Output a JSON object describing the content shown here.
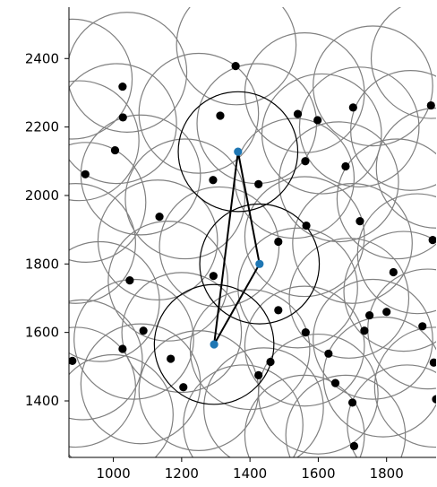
{
  "chart_data": {
    "type": "scatter",
    "title": "",
    "xlabel": "",
    "ylabel": "",
    "xlim": [
      870,
      1945
    ],
    "ylim": [
      1235,
      2550
    ],
    "xticks": [
      1000,
      1200,
      1400,
      1600,
      1800
    ],
    "xtick_labels": [
      "1000",
      "1200",
      "1400",
      "1600",
      "1800"
    ],
    "yticks": [
      1400,
      1600,
      1800,
      2000,
      2200,
      2400
    ],
    "ytick_labels": [
      "1400",
      "1600",
      "1800",
      "2000",
      "2200",
      "2400"
    ],
    "grid": false,
    "colors": {
      "points": "#000000",
      "highlight_points": "#1f77b4",
      "range_circles": "#808080",
      "highlight_circles": "#000000",
      "path": "#000000"
    },
    "circle_radius": 175,
    "points": [
      [
        1358,
        2378
      ],
      [
        1027,
        2318
      ],
      [
        1028,
        2228
      ],
      [
        1313,
        2233
      ],
      [
        1540,
        2238
      ],
      [
        1598,
        2220
      ],
      [
        1702,
        2257
      ],
      [
        1930,
        2263
      ],
      [
        1005,
        2132
      ],
      [
        918,
        2062
      ],
      [
        1562,
        2100
      ],
      [
        1680,
        2085
      ],
      [
        1292,
        2045
      ],
      [
        1425,
        2033
      ],
      [
        1135,
        1938
      ],
      [
        1565,
        1912
      ],
      [
        1722,
        1925
      ],
      [
        1483,
        1865
      ],
      [
        1935,
        1870
      ],
      [
        1293,
        1765
      ],
      [
        1820,
        1776
      ],
      [
        1048,
        1752
      ],
      [
        1483,
        1665
      ],
      [
        1800,
        1660
      ],
      [
        1750,
        1650
      ],
      [
        1088,
        1605
      ],
      [
        1563,
        1600
      ],
      [
        1735,
        1605
      ],
      [
        1905,
        1618
      ],
      [
        880,
        1517
      ],
      [
        1027,
        1552
      ],
      [
        1168,
        1523
      ],
      [
        1460,
        1514
      ],
      [
        1630,
        1538
      ],
      [
        1938,
        1512
      ],
      [
        1205,
        1440
      ],
      [
        1425,
        1475
      ],
      [
        1650,
        1452
      ],
      [
        1945,
        1405
      ],
      [
        1700,
        1395
      ],
      [
        1705,
        1268
      ]
    ],
    "highlight_points": [
      [
        1365,
        2128
      ],
      [
        1428,
        1800
      ],
      [
        1295,
        1565
      ]
    ],
    "range_circle_centers": [
      [
        880,
        2340
      ],
      [
        1040,
        2360
      ],
      [
        1360,
        2440
      ],
      [
        1560,
        2300
      ],
      [
        1760,
        2320
      ],
      [
        1930,
        2400
      ],
      [
        900,
        2160
      ],
      [
        1010,
        2210
      ],
      [
        1250,
        2240
      ],
      [
        1420,
        2210
      ],
      [
        1610,
        2180
      ],
      [
        1720,
        2200
      ],
      [
        1870,
        2190
      ],
      [
        920,
        1980
      ],
      [
        1080,
        2060
      ],
      [
        1210,
        1990
      ],
      [
        1530,
        2050
      ],
      [
        1660,
        2040
      ],
      [
        1830,
        1990
      ],
      [
        1945,
        2080
      ],
      [
        890,
        1860
      ],
      [
        1130,
        1870
      ],
      [
        1310,
        1850
      ],
      [
        1560,
        1880
      ],
      [
        1700,
        1860
      ],
      [
        1890,
        1830
      ],
      [
        960,
        1690
      ],
      [
        1160,
        1750
      ],
      [
        1540,
        1730
      ],
      [
        1690,
        1700
      ],
      [
        1850,
        1720
      ],
      [
        910,
        1520
      ],
      [
        1060,
        1580
      ],
      [
        1200,
        1600
      ],
      [
        1400,
        1550
      ],
      [
        1560,
        1560
      ],
      [
        1760,
        1580
      ],
      [
        1920,
        1610
      ],
      [
        890,
        1440
      ],
      [
        1080,
        1450
      ],
      [
        1250,
        1430
      ],
      [
        1440,
        1380
      ],
      [
        1600,
        1420
      ],
      [
        1790,
        1470
      ],
      [
        1940,
        1440
      ],
      [
        1680,
        1300
      ],
      [
        1560,
        1300
      ],
      [
        1860,
        1330
      ],
      [
        1000,
        1360
      ],
      [
        1380,
        1330
      ]
    ],
    "highlight_circle_centers": [
      [
        1365,
        2128
      ],
      [
        1428,
        1800
      ],
      [
        1295,
        1565
      ]
    ],
    "path_segments": [
      [
        [
          1365,
          2128
        ],
        [
          1428,
          1800
        ]
      ],
      [
        [
          1365,
          2128
        ],
        [
          1295,
          1565
        ]
      ],
      [
        [
          1428,
          1800
        ],
        [
          1295,
          1565
        ]
      ]
    ]
  }
}
